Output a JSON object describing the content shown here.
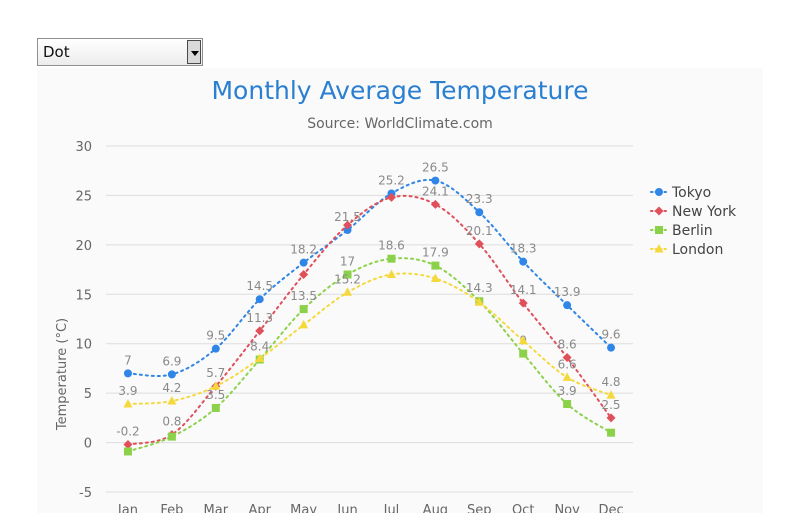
{
  "control": {
    "selected": "Dot"
  },
  "chart_data": {
    "type": "line",
    "line_style": "dotted",
    "title": "Monthly Average Temperature",
    "subtitle": "Source: WorldClimate.com",
    "xlabel": "",
    "ylabel": "Temperature (°C)",
    "categories": [
      "Jan",
      "Feb",
      "Mar",
      "Apr",
      "May",
      "Jun",
      "Jul",
      "Aug",
      "Sep",
      "Oct",
      "Nov",
      "Dec"
    ],
    "ylim": [
      -5,
      30
    ],
    "yticks": [
      -5,
      0,
      5,
      10,
      15,
      20,
      25,
      30
    ],
    "grid": true,
    "legend": "right",
    "series": [
      {
        "name": "Tokyo",
        "color": "#2f86e6",
        "marker": "circle",
        "values": [
          7,
          6.9,
          9.5,
          14.5,
          18.2,
          21.5,
          25.2,
          26.5,
          23.3,
          18.3,
          13.9,
          9.6
        ]
      },
      {
        "name": "New York",
        "color": "#e0505a",
        "marker": "diamond",
        "values": [
          -0.2,
          0.8,
          5.7,
          11.3,
          17,
          22,
          24.8,
          24.1,
          20.1,
          14.1,
          8.6,
          2.5
        ]
      },
      {
        "name": "Berlin",
        "color": "#8bd24a",
        "marker": "square",
        "values": [
          -0.9,
          0.6,
          3.5,
          8.4,
          13.5,
          17,
          18.6,
          17.9,
          14.3,
          9,
          3.9,
          1
        ]
      },
      {
        "name": "London",
        "color": "#f5d93c",
        "marker": "triangle",
        "values": [
          3.9,
          4.2,
          5.7,
          8.5,
          11.9,
          15.2,
          17,
          16.6,
          14.2,
          10.3,
          6.6,
          4.8
        ]
      }
    ],
    "data_labels": {
      "Tokyo": [
        "7",
        "6.9",
        "9.5",
        "14.5",
        "18.2",
        "21.5",
        "25.2",
        "26.5",
        "23.3",
        "18.3",
        "13.9",
        "9.6"
      ],
      "New York": [
        "-0.2",
        "0.8",
        "",
        "11.3",
        "",
        "",
        "",
        "24.1",
        "20.1",
        "14.1",
        "8.6",
        "2.5"
      ],
      "Berlin": [
        "",
        "",
        "3.5",
        "8.4",
        "13.5",
        "17",
        "18.6",
        "17.9",
        "14.3",
        "9",
        "3.9",
        ""
      ],
      "London": [
        "3.9",
        "4.2",
        "5.7",
        "",
        "",
        "15.2",
        "",
        "",
        "",
        "",
        "6.6",
        "4.8"
      ]
    }
  }
}
